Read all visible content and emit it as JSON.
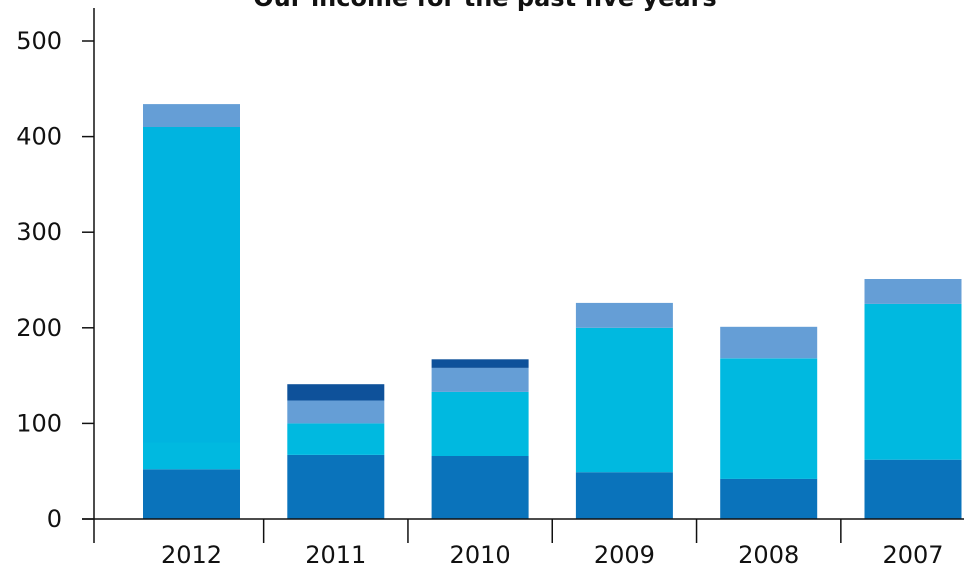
{
  "chart_data": {
    "type": "bar",
    "stacked": true,
    "title": "Our income for the past five years",
    "xlabel": "",
    "ylabel": "",
    "categories": [
      "2012",
      "2011",
      "2010",
      "2009",
      "2008",
      "2007"
    ],
    "ylim": [
      0,
      500
    ],
    "yticks": [
      "0",
      "100",
      "200",
      "300",
      "400",
      "500"
    ],
    "grid": false,
    "series": [
      {
        "color": "#0a73bb",
        "values": [
          52,
          67,
          66,
          49,
          42,
          62
        ]
      },
      {
        "color": "#00b9e0",
        "values": [
          28,
          33,
          67,
          151,
          126,
          163
        ]
      },
      {
        "color": "#00b4e0",
        "values": [
          330,
          0,
          0,
          0,
          0,
          0
        ]
      },
      {
        "color": "#659ed6",
        "values": [
          24,
          24,
          25,
          26,
          33,
          26
        ]
      },
      {
        "color": "#0e519a",
        "values": [
          0,
          17,
          9,
          0,
          0,
          0
        ]
      }
    ]
  }
}
